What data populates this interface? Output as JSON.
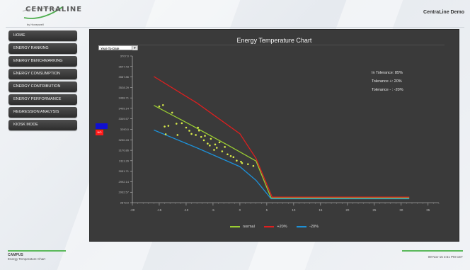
{
  "header": {
    "logo_text": "CENTRALINE",
    "logo_subtext": "by Honeywell",
    "app_title": "CentraLine Demo"
  },
  "sidebar": {
    "items": [
      {
        "label": "HOME"
      },
      {
        "label": "ENERGY RANKING"
      },
      {
        "label": "ENERGY BENCHMARKING"
      },
      {
        "label": "ENERGY CONSUMPTION"
      },
      {
        "label": "ENERGY CONTRIBUTION"
      },
      {
        "label": "ENERGY PERFORMANCE"
      },
      {
        "label": "REGRESSION ANALYSIS"
      },
      {
        "label": "KIOSK MODE"
      }
    ]
  },
  "panel": {
    "period_select": {
      "value": "Year-To-Date"
    },
    "red_badge": "NO",
    "stats": {
      "in_tolerance": "In Tolerance: 85%",
      "tolerance_plus": "Tolerance +: 20%",
      "tolerance_minus": "Tolerance - : -20%"
    },
    "colors": {
      "panel_bg": "#3a3a3a",
      "normal": "#9acd32",
      "plus": "#dd1f1f",
      "minus": "#1e90d6",
      "points": "#d6e84a"
    }
  },
  "chart_data": {
    "type": "line",
    "title": "Energy Temperature Chart",
    "xlabel": "",
    "ylabel": "",
    "x_ticks": [
      -20,
      -15,
      -10,
      -5,
      0,
      5,
      10,
      15,
      20,
      25,
      30,
      35
    ],
    "y_ticks": [
      "2873.0",
      "2932.57",
      "2992.14",
      "3051.71",
      "3111.29",
      "3170.86",
      "3230.43",
      "3290.0",
      "3349.57",
      "3409.14",
      "3468.71",
      "3528.29",
      "3587.86",
      "3647.43",
      "3707.0"
    ],
    "xlim": [
      -20,
      37
    ],
    "ylim": [
      2873.0,
      3707.0
    ],
    "grid": false,
    "legend_placement": "bottom",
    "series": [
      {
        "name": "normal",
        "color": "#9acd32",
        "points": [
          [
            -16,
            3426
          ],
          [
            -9,
            3313
          ],
          [
            -2,
            3196
          ],
          [
            3,
            3110
          ],
          [
            5.8,
            2900
          ],
          [
            31.5,
            2900
          ]
        ]
      },
      {
        "name": "+20%",
        "color": "#dd1f1f",
        "points": [
          [
            -16,
            3590
          ],
          [
            -8,
            3440
          ],
          [
            0,
            3265
          ],
          [
            3,
            3125
          ],
          [
            6,
            2905
          ],
          [
            31.5,
            2905
          ]
        ]
      },
      {
        "name": "-20%",
        "color": "#1e90d6",
        "points": [
          [
            -16,
            3286
          ],
          [
            -8,
            3185
          ],
          [
            0,
            3078
          ],
          [
            3,
            3000
          ],
          [
            5.8,
            2895
          ],
          [
            31.5,
            2895
          ]
        ]
      }
    ],
    "scatter": [
      [
        -15,
        3420
      ],
      [
        -14.3,
        3428
      ],
      [
        -14,
        3306
      ],
      [
        -13.3,
        3310
      ],
      [
        -13.8,
        3262
      ],
      [
        -12.6,
        3385
      ],
      [
        -11.8,
        3322
      ],
      [
        -11.6,
        3258
      ],
      [
        -10.8,
        3325
      ],
      [
        -10,
        3300
      ],
      [
        -9.4,
        3282
      ],
      [
        -9,
        3264
      ],
      [
        -8.2,
        3258
      ],
      [
        -7.8,
        3300
      ],
      [
        -7.6,
        3283
      ],
      [
        -7.2,
        3247
      ],
      [
        -6.7,
        3228
      ],
      [
        -6.5,
        3253
      ],
      [
        -6,
        3209
      ],
      [
        -5.6,
        3198
      ],
      [
        -5.4,
        3236
      ],
      [
        -4.8,
        3173
      ],
      [
        -4.6,
        3204
      ],
      [
        -4.3,
        3185
      ],
      [
        -3.8,
        3216
      ],
      [
        -3.3,
        3165
      ],
      [
        -2.8,
        3190
      ],
      [
        -2.3,
        3148
      ],
      [
        -1.7,
        3138
      ],
      [
        -1.2,
        3132
      ],
      [
        -0.6,
        3112
      ],
      [
        0.2,
        3106
      ],
      [
        0.4,
        3098
      ],
      [
        1.5,
        3092
      ],
      [
        2.5,
        3082
      ]
    ]
  },
  "footer": {
    "location": "CAMPUS",
    "page": "Energy Temperature Chart",
    "timestamp": "09-Nov-15 3:51 PM CET"
  }
}
